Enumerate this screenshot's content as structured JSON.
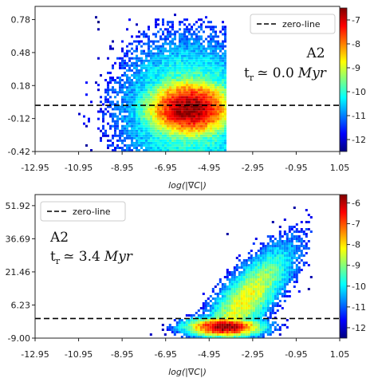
{
  "colors": {
    "zero_line": "#000000",
    "frame": "#222222",
    "cmap": [
      "#00007f",
      "#0000ff",
      "#007fff",
      "#00ffff",
      "#7fff7f",
      "#ffff00",
      "#ff7f00",
      "#ff0000",
      "#7f0000"
    ]
  },
  "chart_data": [
    {
      "type": "heatmap",
      "panel": "top",
      "xlabel": "log(|∇C|)",
      "ylabel": "",
      "x_ticks": [
        "-12.95",
        "-10.95",
        "-8.95",
        "-6.95",
        "-4.95",
        "-2.95",
        "-0.95",
        "1.05"
      ],
      "y_ticks": [
        "0.78",
        "0.48",
        "0.18",
        "-0.12",
        "-0.42"
      ],
      "xlim": [
        -12.95,
        1.05
      ],
      "ylim": [
        -0.42,
        0.9
      ],
      "zero_line_y": 0.0,
      "legend": {
        "entries": [
          "zero-line"
        ],
        "position": "top-right"
      },
      "annotation": {
        "model": "A2",
        "time_label": "t",
        "time_sub": "r",
        "time_value": "≃ 0.0",
        "time_unit": "Myr"
      },
      "colorbar": {
        "ticks": [
          "-7",
          "-8",
          "-9",
          "-10",
          "-11",
          "-12"
        ],
        "range": [
          -12.5,
          -6.5
        ]
      },
      "density_center": {
        "x": -5.9,
        "y": -0.04
      },
      "x_extent": [
        -11.3,
        -4.2
      ],
      "y_extent": [
        -0.42,
        0.83
      ],
      "peak": -6.6
    },
    {
      "type": "heatmap",
      "panel": "bottom",
      "xlabel": "log(|∇C|)",
      "ylabel": "",
      "x_ticks": [
        "-12.95",
        "-10.95",
        "-8.95",
        "-6.95",
        "-4.95",
        "-2.95",
        "-0.95",
        "1.05"
      ],
      "y_ticks": [
        "51.92",
        "36.69",
        "21.46",
        "6.23",
        "-9.00"
      ],
      "xlim": [
        -12.95,
        1.05
      ],
      "ylim": [
        -9.0,
        57.0
      ],
      "zero_line_y": 0.0,
      "legend": {
        "entries": [
          "zero-line"
        ],
        "position": "top-left"
      },
      "annotation": {
        "model": "A2",
        "time_label": "t",
        "time_sub": "r",
        "time_value": "≃ 3.4",
        "time_unit": "Myr"
      },
      "colorbar": {
        "ticks": [
          "-6",
          "-7",
          "-8",
          "-9",
          "-10",
          "-11",
          "-12"
        ],
        "range": [
          -12.5,
          -5.6
        ]
      },
      "density_center": {
        "x": -4.3,
        "y": -4.5
      },
      "x_extent": [
        -9.0,
        -0.3
      ],
      "y_extent": [
        -9.0,
        55.0
      ],
      "peak": -5.8
    }
  ]
}
